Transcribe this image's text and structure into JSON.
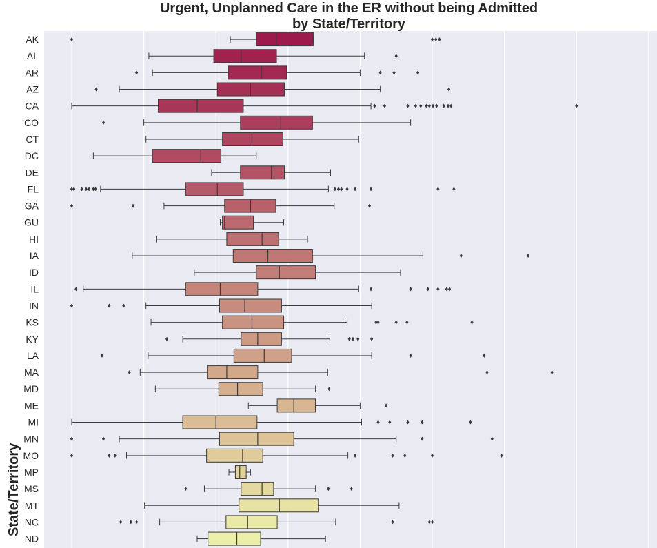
{
  "chart_data": {
    "type": "box",
    "orientation": "horizontal",
    "title": [
      "Urgent, Unplanned Care in the ER without being Admitted",
      "by State/Territory"
    ],
    "xlabel": "",
    "ylabel": "State/Territory",
    "x_range": [
      0,
      8
    ],
    "grid": true,
    "background": "#eaeaf2",
    "palette": "YlOrRd reversed (crimson to pale yellow)",
    "color_start": "#9e1a4c",
    "color_end": "#ecefaa",
    "series": [
      {
        "name": "AK",
        "whisker_low": 2.2,
        "q1": 2.56,
        "median": 2.84,
        "q3": 3.35,
        "whisker_high": 3.35,
        "outliers": [
          0,
          5.0,
          5.05,
          5.1
        ]
      },
      {
        "name": "AL",
        "whisker_low": 1.07,
        "q1": 1.97,
        "median": 2.35,
        "q3": 2.84,
        "whisker_high": 4.06,
        "outliers": [
          4.5
        ]
      },
      {
        "name": "AR",
        "whisker_low": 1.12,
        "q1": 2.17,
        "median": 2.63,
        "q3": 2.98,
        "whisker_high": 4.0,
        "outliers": [
          0.9,
          4.28,
          4.47,
          4.8
        ]
      },
      {
        "name": "AZ",
        "whisker_low": 0.66,
        "q1": 2.02,
        "median": 2.48,
        "q3": 2.95,
        "whisker_high": 4.28,
        "outliers": [
          0.34,
          5.23
        ]
      },
      {
        "name": "CA",
        "whisker_low": 0,
        "q1": 1.2,
        "median": 1.74,
        "q3": 2.38,
        "whisker_high": 4.15,
        "outliers": [
          4.2,
          4.34,
          4.66,
          4.77,
          4.84,
          4.92,
          4.96,
          5.01,
          5.06,
          5.16,
          5.22,
          5.26,
          7.0
        ]
      },
      {
        "name": "CO",
        "whisker_low": 1.0,
        "q1": 2.34,
        "median": 2.9,
        "q3": 3.34,
        "whisker_high": 4.7,
        "outliers": [
          0.44
        ]
      },
      {
        "name": "CT",
        "whisker_low": 1.03,
        "q1": 2.09,
        "median": 2.5,
        "q3": 2.93,
        "whisker_high": 3.98,
        "outliers": []
      },
      {
        "name": "DC",
        "whisker_low": 0.3,
        "q1": 1.12,
        "median": 1.79,
        "q3": 2.07,
        "whisker_high": 2.56,
        "outliers": []
      },
      {
        "name": "DE",
        "whisker_low": 1.94,
        "q1": 2.34,
        "median": 2.77,
        "q3": 2.95,
        "whisker_high": 3.59,
        "outliers": []
      },
      {
        "name": "FL",
        "whisker_low": 0.4,
        "q1": 1.58,
        "median": 2.02,
        "q3": 2.38,
        "whisker_high": 3.56,
        "outliers": [
          0,
          0.03,
          0.14,
          0.2,
          0.24,
          0.3,
          0.33,
          3.65,
          3.7,
          3.74,
          3.82,
          3.93,
          4.15,
          5.08,
          5.3
        ]
      },
      {
        "name": "GA",
        "whisker_low": 1.28,
        "q1": 2.12,
        "median": 2.48,
        "q3": 2.83,
        "whisker_high": 3.64,
        "outliers": [
          0,
          0.85,
          4.13
        ]
      },
      {
        "name": "GU",
        "whisker_low": 2.06,
        "q1": 2.09,
        "median": 2.12,
        "q3": 2.52,
        "whisker_high": 2.94,
        "outliers": []
      },
      {
        "name": "HI",
        "whisker_low": 1.18,
        "q1": 2.15,
        "median": 2.64,
        "q3": 2.87,
        "whisker_high": 3.27,
        "outliers": []
      },
      {
        "name": "IA",
        "whisker_low": 0.84,
        "q1": 2.24,
        "median": 2.72,
        "q3": 3.34,
        "whisker_high": 4.87,
        "outliers": [
          5.4,
          6.33
        ]
      },
      {
        "name": "ID",
        "whisker_low": 1.7,
        "q1": 2.56,
        "median": 2.88,
        "q3": 3.38,
        "whisker_high": 4.56,
        "outliers": []
      },
      {
        "name": "IL",
        "whisker_low": 0.16,
        "q1": 1.58,
        "median": 2.06,
        "q3": 2.58,
        "whisker_high": 3.98,
        "outliers": [
          0.06,
          4.15,
          4.7,
          4.94,
          5.08,
          5.2,
          5.24
        ]
      },
      {
        "name": "IN",
        "whisker_low": 1.03,
        "q1": 2.05,
        "median": 2.4,
        "q3": 2.91,
        "whisker_high": 4.16,
        "outliers": [
          0,
          0.52,
          0.72
        ]
      },
      {
        "name": "KS",
        "whisker_low": 1.1,
        "q1": 2.09,
        "median": 2.5,
        "q3": 2.94,
        "whisker_high": 3.82,
        "outliers": [
          4.22,
          4.25,
          4.5,
          4.65,
          5.55
        ]
      },
      {
        "name": "KY",
        "whisker_low": 1.54,
        "q1": 2.35,
        "median": 2.58,
        "q3": 2.91,
        "whisker_high": 3.58,
        "outliers": [
          1.32,
          3.85,
          3.9,
          3.97,
          4.16
        ]
      },
      {
        "name": "LA",
        "whisker_low": 1.06,
        "q1": 2.25,
        "median": 2.67,
        "q3": 3.05,
        "whisker_high": 4.16,
        "outliers": [
          0.42,
          4.7,
          5.72
        ]
      },
      {
        "name": "MA",
        "whisker_low": 0.95,
        "q1": 1.88,
        "median": 2.15,
        "q3": 2.58,
        "whisker_high": 3.55,
        "outliers": [
          0.8,
          5.76,
          6.66
        ]
      },
      {
        "name": "MD",
        "whisker_low": 1.16,
        "q1": 2.04,
        "median": 2.3,
        "q3": 2.65,
        "whisker_high": 3.38,
        "outliers": [
          3.57
        ]
      },
      {
        "name": "ME",
        "whisker_low": 2.45,
        "q1": 2.85,
        "median": 3.08,
        "q3": 3.38,
        "whisker_high": 4.0,
        "outliers": [
          4.36
        ]
      },
      {
        "name": "MI",
        "whisker_low": 0,
        "q1": 1.54,
        "median": 2.0,
        "q3": 2.57,
        "whisker_high": 4.02,
        "outliers": [
          4.25,
          4.41,
          4.66,
          4.86,
          5.53
        ]
      },
      {
        "name": "MN",
        "whisker_low": 0.66,
        "q1": 2.05,
        "median": 2.58,
        "q3": 3.08,
        "whisker_high": 4.5,
        "outliers": [
          0,
          0.44,
          4.86,
          5.83
        ]
      },
      {
        "name": "MO",
        "whisker_low": 0.76,
        "q1": 1.87,
        "median": 2.37,
        "q3": 2.65,
        "whisker_high": 3.83,
        "outliers": [
          0,
          0.52,
          0.6,
          3.93,
          4.45,
          4.62,
          5.0,
          5.96
        ]
      },
      {
        "name": "MP",
        "whisker_low": 2.18,
        "q1": 2.27,
        "median": 2.33,
        "q3": 2.42,
        "whisker_high": 2.48,
        "outliers": []
      },
      {
        "name": "MS",
        "whisker_low": 1.84,
        "q1": 2.35,
        "median": 2.64,
        "q3": 2.8,
        "whisker_high": 3.38,
        "outliers": [
          1.58,
          3.56,
          3.88
        ]
      },
      {
        "name": "MT",
        "whisker_low": 1.01,
        "q1": 2.32,
        "median": 2.88,
        "q3": 3.42,
        "whisker_high": 4.54,
        "outliers": []
      },
      {
        "name": "NC",
        "whisker_low": 1.22,
        "q1": 2.14,
        "median": 2.44,
        "q3": 2.85,
        "whisker_high": 3.66,
        "outliers": [
          0.68,
          0.82,
          0.9,
          4.45,
          4.96,
          5.0
        ]
      },
      {
        "name": "ND",
        "whisker_low": 1.74,
        "q1": 1.89,
        "median": 2.29,
        "q3": 2.62,
        "whisker_high": 3.52,
        "outliers": []
      }
    ]
  }
}
